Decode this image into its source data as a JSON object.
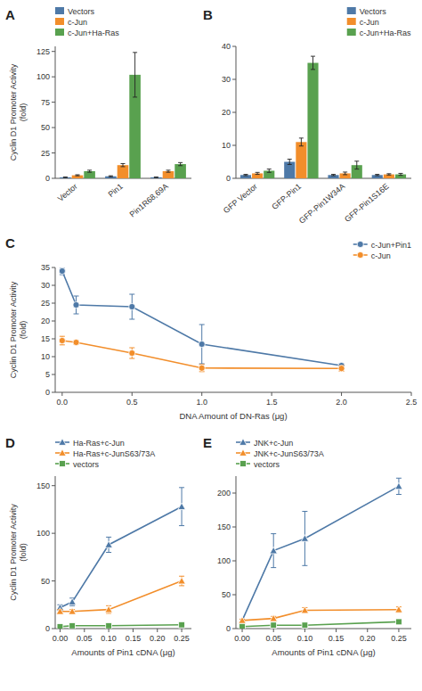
{
  "chart_data": [
    {
      "type": "bar",
      "title": "A",
      "categories": [
        "Vector",
        "Pin1",
        "Pin1R68,69A"
      ],
      "series": [
        {
          "name": "Vectors",
          "values": [
            1,
            2,
            1
          ],
          "errors": [
            0.3,
            0.5,
            0.3
          ]
        },
        {
          "name": "c-Jun",
          "values": [
            3,
            13,
            7
          ],
          "errors": [
            0.5,
            1.5,
            1.0
          ]
        },
        {
          "name": "c-Jun+Ha-Ras",
          "values": [
            7,
            102,
            14
          ],
          "errors": [
            1.0,
            22,
            1.5
          ]
        }
      ],
      "ylabel": "Cyclin D1 Promoter Activity\n(fold)",
      "ylim": [
        0,
        130
      ],
      "yticks": [
        0,
        25,
        50,
        75,
        100,
        125
      ],
      "legend": "upper left"
    },
    {
      "type": "bar",
      "title": "B",
      "categories": [
        "GFP Vector",
        "GFP-Pin1",
        "GFP-Pin1W34A",
        "GFP-Pin1S16E"
      ],
      "series": [
        {
          "name": "Vectors",
          "values": [
            1,
            5,
            1,
            1
          ],
          "errors": [
            0.2,
            0.8,
            0.2,
            0.2
          ]
        },
        {
          "name": "c-Jun",
          "values": [
            1.5,
            11,
            1.5,
            1.2
          ],
          "errors": [
            0.3,
            1.2,
            0.4,
            0.2
          ]
        },
        {
          "name": "c-Jun+Ha-Ras",
          "values": [
            2.3,
            35,
            4,
            1.2
          ],
          "errors": [
            0.5,
            2,
            1.2,
            0.3
          ]
        }
      ],
      "ylim": [
        0,
        40
      ],
      "yticks": [
        0,
        10,
        20,
        30,
        40
      ],
      "legend": "upper right"
    },
    {
      "type": "line",
      "title": "C",
      "x": [
        0,
        0.1,
        0.5,
        1.0,
        2.0
      ],
      "series": [
        {
          "name": "c-Jun+Pin1",
          "values": [
            34,
            24.5,
            24,
            13.5,
            7.5
          ],
          "errors": [
            1.0,
            2.5,
            3.5,
            5.5,
            0.5
          ],
          "marker": "circle"
        },
        {
          "name": "c-Jun",
          "values": [
            14.5,
            14,
            11,
            6.8,
            6.7
          ],
          "errors": [
            1.2,
            0.5,
            1.5,
            1.0,
            0.8
          ],
          "marker": "circle"
        }
      ],
      "xlabel": "DNA Amount of DN-Ras (μg)",
      "ylabel": "Cyclin D1 Promoter Activity\n(fold)",
      "xlim": [
        -0.05,
        2.5
      ],
      "xticks": [
        {
          "value": 0,
          "label": "0.0"
        },
        0.5,
        {
          "value": 1.0,
          "label": "1.0"
        },
        1.5,
        {
          "value": 2.0,
          "label": "2.0"
        },
        2.5
      ],
      "ylim": [
        0,
        35
      ],
      "yticks": [
        0,
        5,
        10,
        15,
        20,
        25,
        30,
        35
      ],
      "legend": "upper right"
    },
    {
      "type": "line",
      "title": "D",
      "x": [
        0,
        0.025,
        0.1,
        0.25
      ],
      "series": [
        {
          "name": "Ha-Ras+c-Jun",
          "values": [
            22,
            28,
            88,
            128
          ],
          "errors": [
            3,
            4,
            8,
            20
          ],
          "marker": "triangle"
        },
        {
          "name": "Ha-Ras+c-JunS63/73A",
          "values": [
            18,
            18,
            20,
            50
          ],
          "errors": [
            2,
            2,
            4,
            5
          ],
          "marker": "triangle"
        },
        {
          "name": "vectors",
          "values": [
            2,
            3,
            3,
            4
          ],
          "errors": [
            0.5,
            0.5,
            0.5,
            1
          ],
          "marker": "square"
        }
      ],
      "xlabel": "Amounts of Pin1 cDNA (μg)",
      "ylabel": "Cyclin D1 Promoter Activity\n(fold)",
      "xlim": [
        -0.01,
        0.27
      ],
      "xticks": [
        {
          "value": 0,
          "label": "0.00"
        },
        0.05,
        {
          "value": 0.1,
          "label": "0.10"
        },
        0.15,
        {
          "value": 0.2,
          "label": "0.20"
        },
        0.25
      ],
      "ylim": [
        0,
        160
      ],
      "yticks": [
        0,
        50,
        100,
        150
      ],
      "legend": "upper left"
    },
    {
      "type": "line",
      "title": "E",
      "x": [
        0,
        0.05,
        0.1,
        0.25
      ],
      "series": [
        {
          "name": "JNK+c-Jun",
          "values": [
            12,
            115,
            133,
            210
          ],
          "errors": [
            1.5,
            25,
            40,
            12
          ],
          "marker": "triangle"
        },
        {
          "name": "JNK+c-JunS63/73A",
          "values": [
            12,
            15,
            27,
            28
          ],
          "errors": [
            2,
            3,
            4,
            4
          ],
          "marker": "triangle"
        },
        {
          "name": "vectors",
          "values": [
            3,
            5,
            5,
            10
          ],
          "errors": [
            0.5,
            1,
            1,
            1.5
          ],
          "marker": "square"
        }
      ],
      "xlabel": "Amounts of Pin1 cDNA (μg)",
      "xlim": [
        -0.01,
        0.27
      ],
      "xticks": [
        {
          "value": 0,
          "label": "0.00"
        },
        0.05,
        {
          "value": 0.1,
          "label": "0.10"
        },
        0.15,
        {
          "value": 0.2,
          "label": "0.20"
        },
        0.25
      ],
      "ylim": [
        0,
        225
      ],
      "yticks": [
        0,
        50,
        100,
        150,
        200
      ],
      "legend": "upper left"
    }
  ]
}
